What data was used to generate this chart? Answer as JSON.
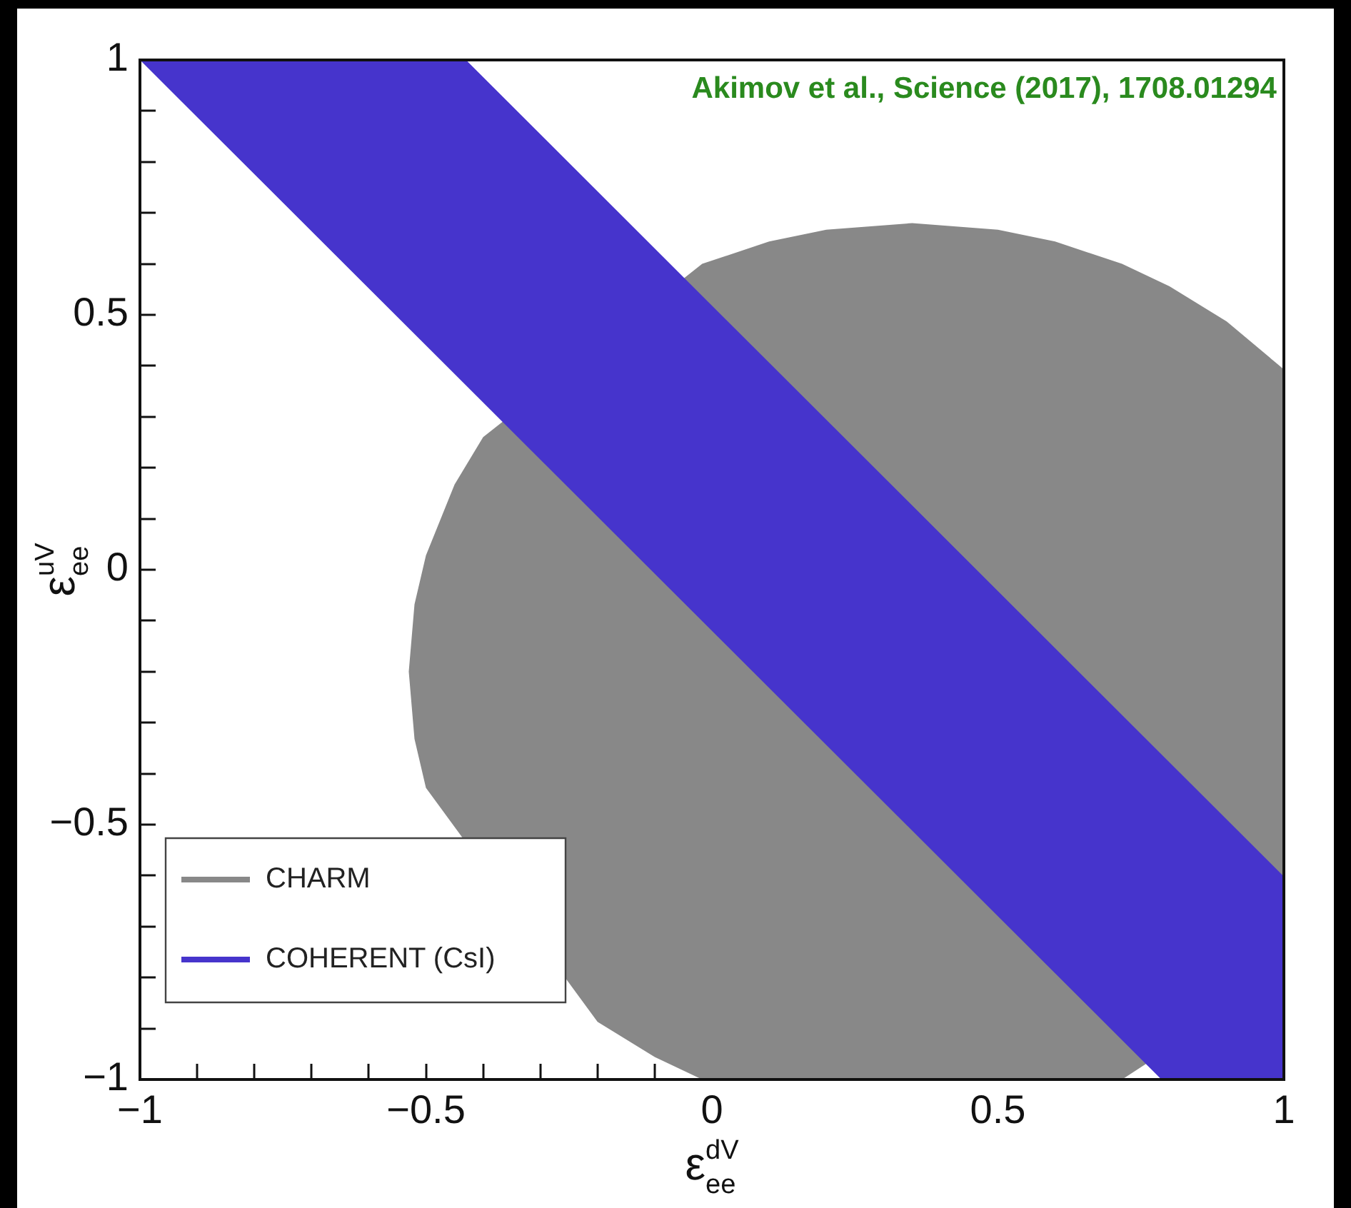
{
  "chart_data": {
    "type": "area",
    "xlabel": "ε$^{dV}$$_{ee}$",
    "ylabel": "ε$^{uV}$$_{ee}$",
    "annotations": [
      "Akimov et al., Science (2017), 1708.01294"
    ],
    "legend": "bottom left",
    "grid": false,
    "xlim": [
      -1,
      1
    ],
    "ylim": [
      -1,
      1
    ],
    "xticks": [
      {
        "value": -1,
        "label": "−1"
      },
      {
        "value": -0.9,
        "label": null
      },
      {
        "value": -0.8,
        "label": null
      },
      {
        "value": -0.7,
        "label": null
      },
      {
        "value": -0.6,
        "label": null
      },
      {
        "value": -0.5,
        "label": "−0.5"
      },
      {
        "value": -0.4,
        "label": null
      },
      {
        "value": -0.3,
        "label": null
      },
      {
        "value": -0.2,
        "label": null
      },
      {
        "value": -0.1,
        "label": null
      },
      0,
      {
        "value": 0.1,
        "label": null
      },
      {
        "value": 0.2,
        "label": null
      },
      {
        "value": 0.3,
        "label": null
      },
      {
        "value": 0.4,
        "label": null
      },
      0.5,
      {
        "value": 0.6,
        "label": null
      },
      {
        "value": 0.7,
        "label": null
      },
      {
        "value": 0.8,
        "label": null
      },
      {
        "value": 0.9,
        "label": null
      },
      1
    ],
    "yticks": [
      {
        "value": -1,
        "label": "−1"
      },
      {
        "value": -0.9,
        "label": null
      },
      {
        "value": -0.8,
        "label": null
      },
      {
        "value": -0.7,
        "label": null
      },
      {
        "value": -0.6,
        "label": null
      },
      {
        "value": -0.5,
        "label": "−0.5"
      },
      {
        "value": -0.4,
        "label": null
      },
      {
        "value": -0.3,
        "label": null
      },
      {
        "value": -0.2,
        "label": null
      },
      {
        "value": -0.1,
        "label": null
      },
      0,
      {
        "value": 0.1,
        "label": null
      },
      {
        "value": 0.2,
        "label": null
      },
      {
        "value": 0.3,
        "label": null
      },
      {
        "value": 0.4,
        "label": null
      },
      0.5,
      {
        "value": 0.6,
        "label": null
      },
      {
        "value": 0.7,
        "label": null
      },
      {
        "value": 0.8,
        "label": null
      },
      {
        "value": 0.9,
        "label": null
      },
      1
    ],
    "series": [
      {
        "name": "CHARM",
        "color": "#888888",
        "x": [
          -0.53,
          -0.52,
          -0.5,
          -0.45,
          -0.4,
          -0.3,
          -0.2,
          -0.1,
          -0.017,
          0.1,
          0.2,
          0.35,
          0.5,
          0.6,
          0.717,
          0.8,
          0.9,
          1,
          1,
          0.9,
          0.8,
          0.717,
          -0.017,
          -0.1,
          -0.2,
          -0.3,
          -0.4,
          -0.45,
          -0.5,
          -0.52
        ],
        "values": [
          -0.2,
          -0.068,
          0.028,
          0.167,
          0.26,
          null,
          null,
          null,
          0.6,
          0.644,
          0.667,
          0.68,
          0.667,
          0.644,
          0.6,
          0.556,
          0.487,
          0.393,
          -0.793,
          null,
          null,
          -1,
          -1,
          -0.956,
          -0.887,
          null,
          null,
          null,
          -0.428,
          -0.332
        ]
      },
      {
        "name": "COHERENT (CsI)",
        "color": "#4634cc",
        "x": [
          -1,
          -0.43,
          1,
          1,
          0.786
        ],
        "values": [
          1,
          1,
          -0.602,
          -1,
          -1
        ]
      }
    ]
  }
}
